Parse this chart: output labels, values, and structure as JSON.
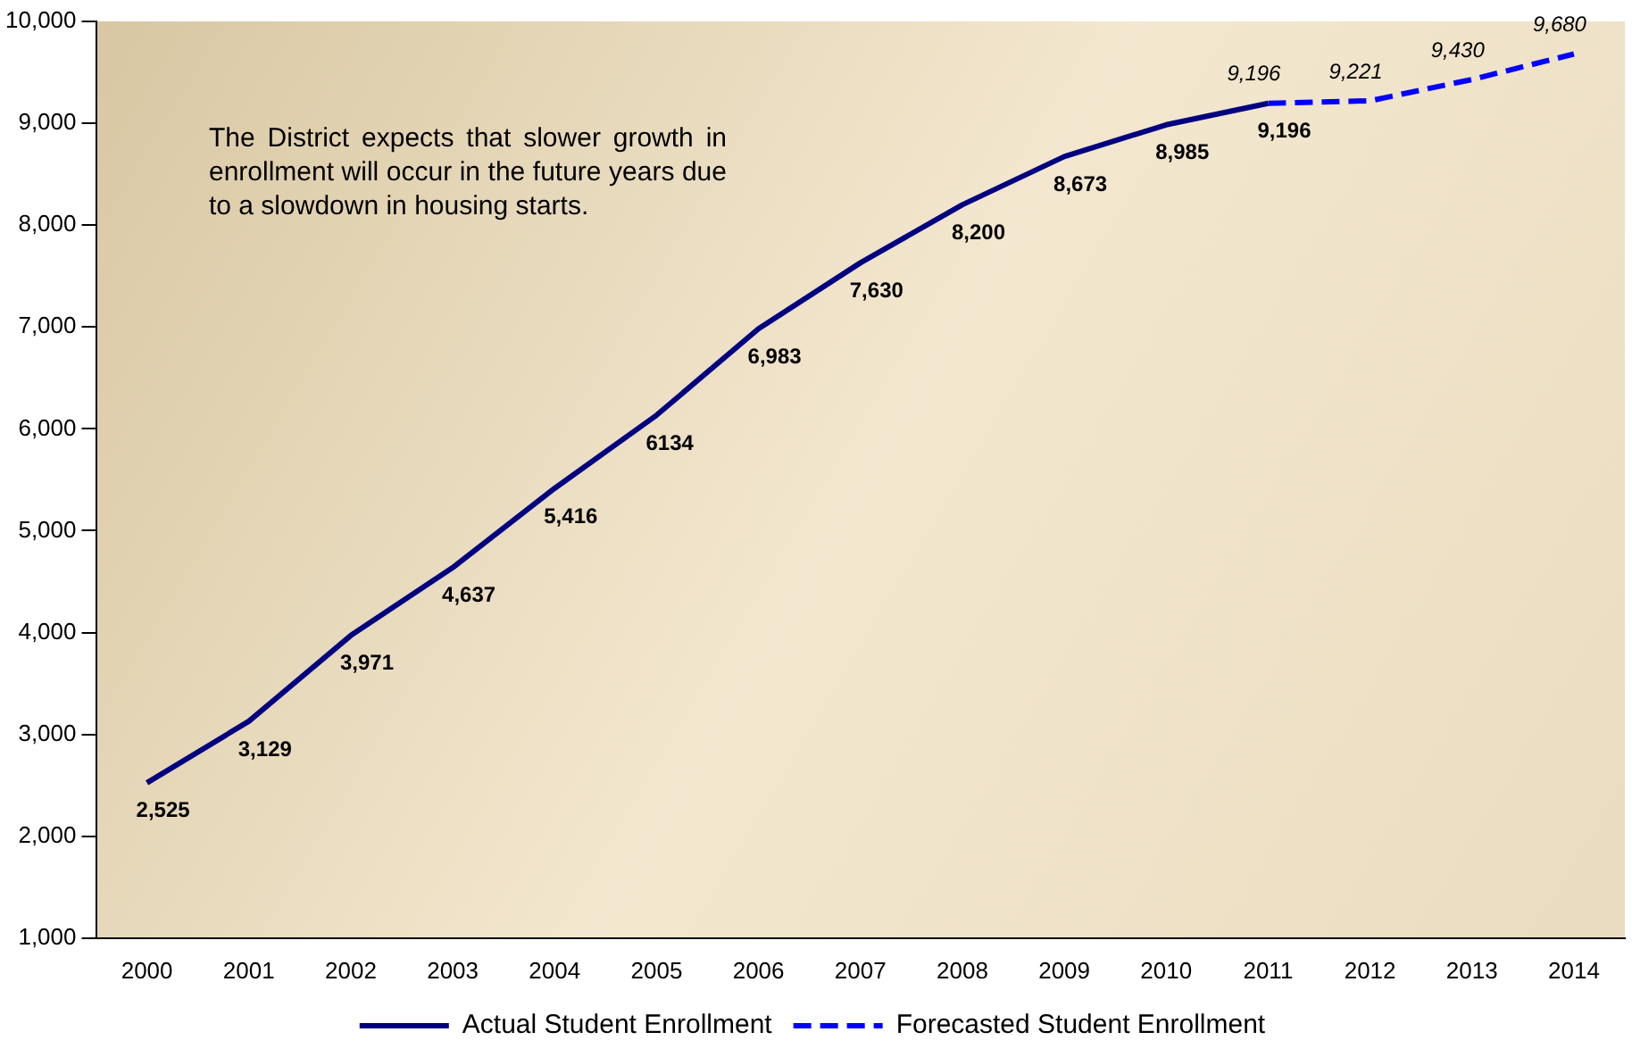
{
  "chart_data": {
    "type": "line",
    "categories": [
      "2000",
      "2001",
      "2002",
      "2003",
      "2004",
      "2005",
      "2006",
      "2007",
      "2008",
      "2009",
      "2010",
      "2011",
      "2012",
      "2013",
      "2014"
    ],
    "series": [
      {
        "name": "Actual Student Enrollment",
        "color": "#000080",
        "line_style": "solid",
        "values": [
          2525,
          3129,
          3971,
          4637,
          5416,
          6134,
          6983,
          7630,
          8200,
          8673,
          8985,
          9196,
          null,
          null,
          null
        ],
        "value_labels": [
          "2,525",
          "3,129",
          "3,971",
          "4,637",
          "5,416",
          "6134",
          "6,983",
          "7,630",
          "8,200",
          "8,673",
          "8,985",
          "9,196",
          null,
          null,
          null
        ]
      },
      {
        "name": "Forecasted Student Enrollment",
        "color": "#0000ff",
        "line_style": "dashed",
        "values": [
          null,
          null,
          null,
          null,
          null,
          null,
          null,
          null,
          null,
          null,
          null,
          9196,
          9221,
          9430,
          9680
        ],
        "value_labels": [
          null,
          null,
          null,
          null,
          null,
          null,
          null,
          null,
          null,
          null,
          null,
          "9,196",
          "9,221",
          "9,430",
          "9,680"
        ]
      }
    ],
    "ylim": [
      1000,
      10000
    ],
    "yticks": [
      {
        "value": 1000,
        "label": "1,000"
      },
      {
        "value": 2000,
        "label": "2,000"
      },
      {
        "value": 3000,
        "label": "3,000"
      },
      {
        "value": 4000,
        "label": "4,000"
      },
      {
        "value": 5000,
        "label": "5,000"
      },
      {
        "value": 6000,
        "label": "6,000"
      },
      {
        "value": 7000,
        "label": "7,000"
      },
      {
        "value": 8000,
        "label": "8,000"
      },
      {
        "value": 9000,
        "label": "9,000"
      },
      {
        "value": 10000,
        "label": "10,000"
      }
    ],
    "grid": false,
    "legend": "bottom",
    "marker": "none",
    "annotations": [
      "The District expects that slower growth in enrollment will occur in the future years due to a slowdown in housing starts."
    ]
  }
}
